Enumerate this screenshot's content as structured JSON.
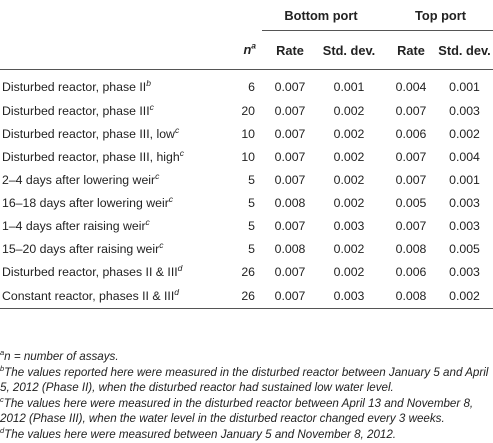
{
  "header": {
    "bottom_port": "Bottom port",
    "top_port": "Top port",
    "n_label": "n",
    "n_sup": "a",
    "rate": "Rate",
    "std_dev": "Std. dev."
  },
  "rows": [
    {
      "cond": "Disturbed reactor, phase II",
      "sup": "b",
      "n": "6",
      "b_rate": "0.007",
      "b_sd": "0.001",
      "t_rate": "0.004",
      "t_sd": "0.001"
    },
    {
      "cond": "Disturbed reactor, phase III",
      "sup": "c",
      "n": "20",
      "b_rate": "0.007",
      "b_sd": "0.002",
      "t_rate": "0.007",
      "t_sd": "0.003"
    },
    {
      "cond": "Disturbed reactor, phase III, low",
      "sup": "c",
      "n": "10",
      "b_rate": "0.007",
      "b_sd": "0.002",
      "t_rate": "0.006",
      "t_sd": "0.002"
    },
    {
      "cond": "Disturbed reactor, phase III, high",
      "sup": "c",
      "n": "10",
      "b_rate": "0.007",
      "b_sd": "0.002",
      "t_rate": "0.007",
      "t_sd": "0.004"
    },
    {
      "cond": "2–4 days after lowering weir",
      "sup": "c",
      "n": "5",
      "b_rate": "0.007",
      "b_sd": "0.002",
      "t_rate": "0.007",
      "t_sd": "0.001"
    },
    {
      "cond": "16–18 days after lowering weir",
      "sup": "c",
      "n": "5",
      "b_rate": "0.008",
      "b_sd": "0.002",
      "t_rate": "0.005",
      "t_sd": "0.003"
    },
    {
      "cond": "1–4 days after raising weir",
      "sup": "c",
      "n": "5",
      "b_rate": "0.007",
      "b_sd": "0.003",
      "t_rate": "0.007",
      "t_sd": "0.003"
    },
    {
      "cond": "15–20 days after raising weir",
      "sup": "c",
      "n": "5",
      "b_rate": "0.008",
      "b_sd": "0.002",
      "t_rate": "0.008",
      "t_sd": "0.005"
    },
    {
      "cond": "Disturbed reactor, phases II & III",
      "sup": "d",
      "n": "26",
      "b_rate": "0.007",
      "b_sd": "0.002",
      "t_rate": "0.006",
      "t_sd": "0.003"
    },
    {
      "cond": "Constant reactor, phases II & III",
      "sup": "d",
      "n": "26",
      "b_rate": "0.007",
      "b_sd": "0.003",
      "t_rate": "0.008",
      "t_sd": "0.002"
    }
  ],
  "footnotes": [
    {
      "mark": "a",
      "text": "n = number of assays."
    },
    {
      "mark": "b",
      "text": "The values reported here were measured in the disturbed reactor between January 5 and April 5, 2012 (Phase II), when the disturbed reactor had sustained low water level."
    },
    {
      "mark": "c",
      "text": "The values here were measured in the disturbed reactor between April 13 and November 8, 2012 (Phase III), when the water level in the disturbed reactor changed every 3 weeks."
    },
    {
      "mark": "d",
      "text": "The values here were measured between January 5 and November 8, 2012."
    }
  ]
}
